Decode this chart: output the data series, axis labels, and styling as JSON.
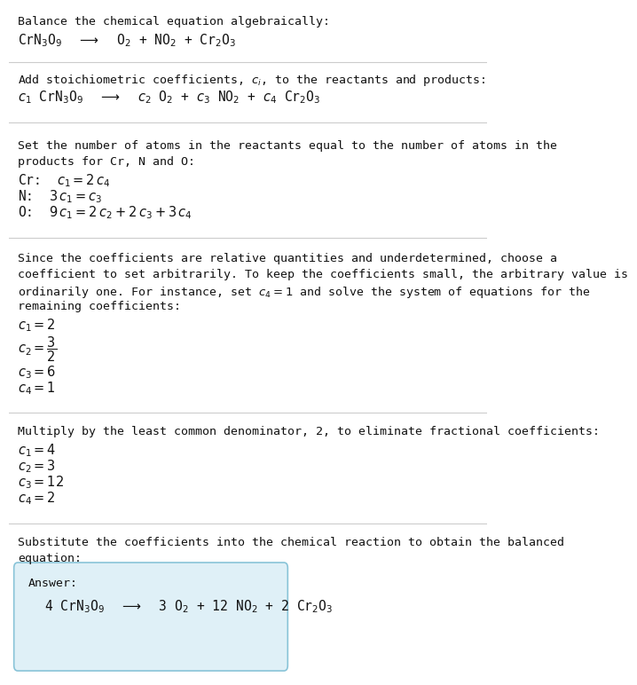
{
  "bg_color": "#ffffff",
  "fig_width": 5.39,
  "fig_height": 7.52,
  "font_family": "monospace",
  "text_color": "#111111",
  "line_color": "#cccccc",
  "section1": {
    "title": "Balance the chemical equation algebraically:",
    "eq": "CrN$_3$O$_9$  $\\longrightarrow$  O$_2$ + NO$_2$ + Cr$_2$O$_3$"
  },
  "section2": {
    "title": "Add stoichiometric coefficients, $c_i$, to the reactants and products:",
    "eq": "$c_1$ CrN$_3$O$_9$  $\\longrightarrow$  $c_2$ O$_2$ + $c_3$ NO$_2$ + $c_4$ Cr$_2$O$_3$"
  },
  "section3": {
    "title1": "Set the number of atoms in the reactants equal to the number of atoms in the",
    "title2": "products for Cr, N and O:",
    "cr": "Cr:  $c_1 = 2\\,c_4$",
    "n": "N:  $3\\,c_1 = c_3$",
    "o": "O:  $9\\,c_1 = 2\\,c_2 + 2\\,c_3 + 3\\,c_4$"
  },
  "section4": {
    "text1": "Since the coefficients are relative quantities and underdetermined, choose a",
    "text2": "coefficient to set arbitrarily. To keep the coefficients small, the arbitrary value is",
    "text3": "ordinarily one. For instance, set $c_4 = 1$ and solve the system of equations for the",
    "text4": "remaining coefficients:",
    "c1": "$c_1 = 2$",
    "c2": "$c_2 = \\dfrac{3}{2}$",
    "c3": "$c_3 = 6$",
    "c4": "$c_4 = 1$"
  },
  "section5": {
    "title": "Multiply by the least common denominator, 2, to eliminate fractional coefficients:",
    "c1": "$c_1 = 4$",
    "c2": "$c_2 = 3$",
    "c3": "$c_3 = 12$",
    "c4": "$c_4 = 2$"
  },
  "section6": {
    "text1": "Substitute the coefficients into the chemical reaction to obtain the balanced",
    "text2": "equation:"
  },
  "answer_box": {
    "bg_color": "#dff0f7",
    "border_color": "#89c4d8",
    "label": "Answer:",
    "eq": "4 CrN$_3$O$_9$  $\\longrightarrow$  3 O$_2$ + 12 NO$_2$ + 2 Cr$_2$O$_3$"
  }
}
